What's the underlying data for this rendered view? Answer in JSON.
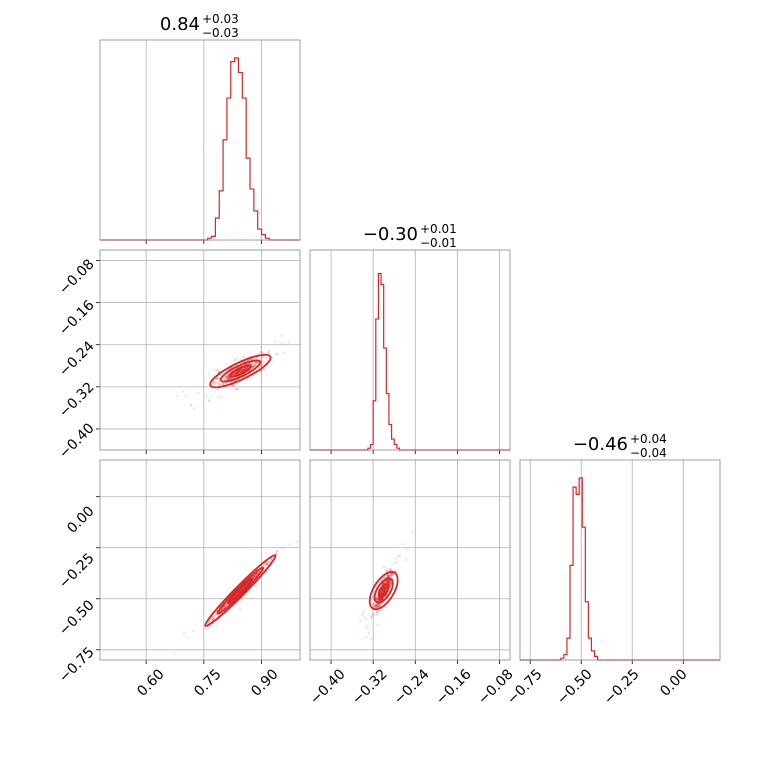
{
  "chart_data": {
    "type": "corner",
    "color": "#d62728",
    "parameters": [
      {
        "median": "0.84",
        "plus": "+0.03",
        "minus": "−0.03",
        "range": [
          0.48,
          1.0
        ],
        "ticks": [
          "0.60",
          "0.75",
          "0.90"
        ],
        "tick_values": [
          0.6,
          0.75,
          0.9
        ]
      },
      {
        "median": "−0.30",
        "plus": "+0.01",
        "minus": "−0.01",
        "range": [
          -0.44,
          -0.06
        ],
        "ticks": [
          "−0.40",
          "−0.32",
          "−0.24",
          "−0.16",
          "−0.08"
        ],
        "tick_values": [
          -0.4,
          -0.32,
          -0.24,
          -0.16,
          -0.08
        ]
      },
      {
        "median": "−0.46",
        "plus": "+0.04",
        "minus": "−0.04",
        "range": [
          -0.8,
          0.18
        ],
        "ticks": [
          "−0.75",
          "−0.50",
          "−0.25",
          "0.00"
        ],
        "tick_values": [
          -0.75,
          -0.5,
          -0.25,
          0.0
        ]
      }
    ],
    "hist1": {
      "x0": 0.76,
      "dx": 0.01,
      "counts": [
        0.01,
        0.02,
        0.12,
        0.27,
        0.55,
        0.78,
        0.98,
        1.0,
        0.92,
        0.78,
        0.45,
        0.28,
        0.16,
        0.06,
        0.03,
        0.01
      ]
    },
    "hist2": {
      "x0": -0.33,
      "dx": 0.005,
      "counts": [
        0.01,
        0.03,
        0.27,
        0.72,
        0.97,
        0.91,
        0.56,
        0.31,
        0.14,
        0.06,
        0.03,
        0.01
      ]
    },
    "hist3": {
      "x0": -0.6,
      "dx": 0.015,
      "counts": [
        0.01,
        0.03,
        0.12,
        0.52,
        0.95,
        0.91,
        1.0,
        0.73,
        0.32,
        0.12,
        0.05,
        0.02
      ]
    },
    "cloud_12": {
      "center": [
        0.845,
        -0.29
      ],
      "slope": 0.35
    },
    "cloud_13": {
      "center": [
        0.845,
        -0.46
      ],
      "slope": 1.9
    },
    "cloud_23": {
      "center": [
        -0.3,
        -0.46
      ],
      "slope": 4.2
    }
  }
}
